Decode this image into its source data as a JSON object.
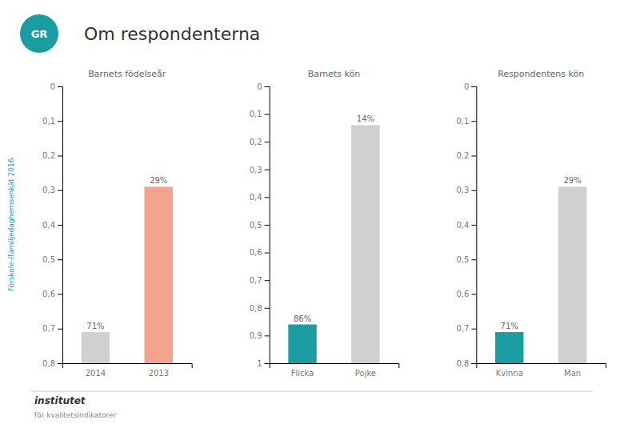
{
  "title": "Om respondenterna",
  "subtitle": "Förskole-/familjedaghemsenkät 2016",
  "annotations": [
    "GR",
    "institutet",
    "för kvalitetsindikatorer"
  ],
  "color": "#1a9da0",
  "chart_data": [
    {
      "type": "bar",
      "title": "Barnets födelseår",
      "categories": [
        "2014",
        "2013"
      ],
      "values": [
        0.71,
        0.29
      ],
      "value_labels": [
        "71%",
        "29%"
      ],
      "colors": [
        "#d0d0d0",
        "#f2a48c"
      ],
      "ylim": [
        0.8,
        0.0
      ],
      "yticks": [
        0,
        {
          "value": 0.1,
          "label": "0,1"
        },
        {
          "value": 0.2,
          "label": "0,2"
        },
        {
          "value": 0.3,
          "label": "0,3"
        },
        {
          "value": 0.4,
          "label": "0,4"
        },
        {
          "value": 0.5,
          "label": "0,5"
        },
        {
          "value": 0.6,
          "label": "0,6"
        },
        {
          "value": 0.7,
          "label": "0,7"
        },
        {
          "value": 0.8,
          "label": "0,8"
        }
      ],
      "grid": false,
      "data_labels": true
    },
    {
      "type": "bar",
      "title": "Barnets kön",
      "categories": [
        "Flicka",
        "Pojke"
      ],
      "values": [
        0.86,
        0.14
      ],
      "value_labels": [
        "86%",
        "14%"
      ],
      "colors": [
        "#1a9da0",
        "#d0d0d0"
      ],
      "ylim": [
        1.0,
        0.0
      ],
      "yticks": [
        0,
        {
          "value": 0.1,
          "label": "0,1"
        },
        {
          "value": 0.2,
          "label": "0,2"
        },
        {
          "value": 0.3,
          "label": "0,3"
        },
        {
          "value": 0.4,
          "label": "0,4"
        },
        {
          "value": 0.5,
          "label": "0,5"
        },
        {
          "value": 0.6,
          "label": "0,6"
        },
        {
          "value": 0.7,
          "label": "0,7"
        },
        {
          "value": 0.8,
          "label": "0,8"
        },
        {
          "value": 0.9,
          "label": "0,9"
        },
        1
      ],
      "grid": false,
      "data_labels": true
    },
    {
      "type": "bar",
      "title": "Respondentens kön",
      "categories": [
        "Kvinna",
        "Man"
      ],
      "values": [
        0.71,
        0.29
      ],
      "value_labels": [
        "71%",
        "29%"
      ],
      "colors": [
        "#1a9da0",
        "#d0d0d0"
      ],
      "ylim": [
        0.8,
        0.0
      ],
      "yticks": [
        0,
        {
          "value": 0.1,
          "label": "0,1"
        },
        {
          "value": 0.2,
          "label": "0,2"
        },
        {
          "value": 0.3,
          "label": "0,3"
        },
        {
          "value": 0.4,
          "label": "0,4"
        },
        {
          "value": 0.5,
          "label": "0,5"
        },
        {
          "value": 0.6,
          "label": "0,6"
        },
        {
          "value": 0.7,
          "label": "0,7"
        },
        {
          "value": 0.8,
          "label": "0,8"
        }
      ],
      "grid": false,
      "data_labels": true
    }
  ]
}
